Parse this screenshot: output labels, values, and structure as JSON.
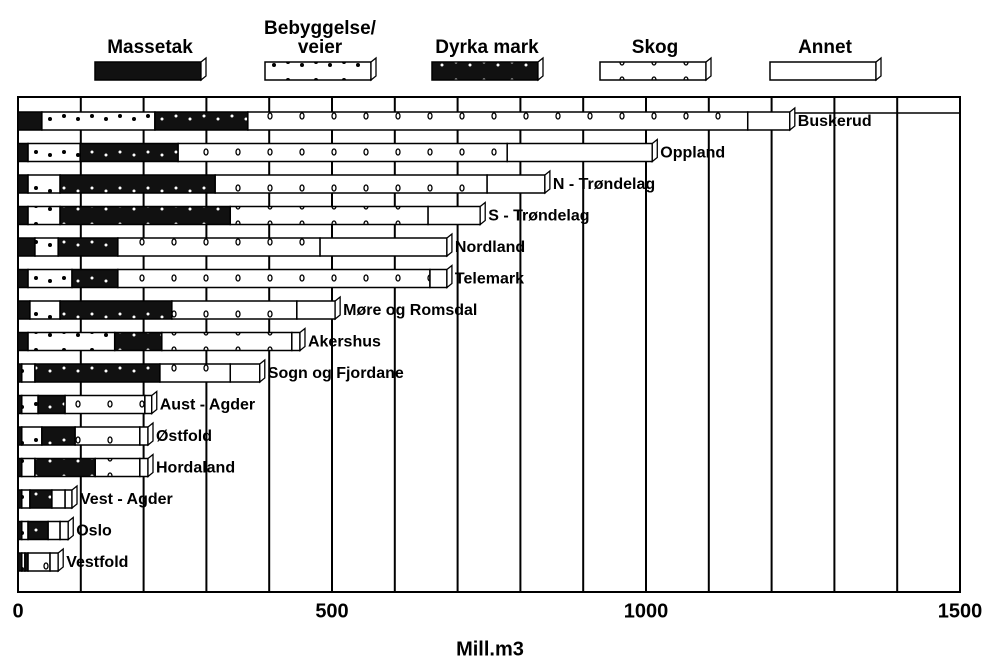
{
  "chart_data": {
    "type": "stacked_barh",
    "xlabel": "Mill.m3",
    "categories": [
      "Buskerud",
      "Oppland",
      "N - Trøndelag",
      "S - Trøndelag",
      "Nordland",
      "Telemark",
      "Møre og Romsdal",
      "Akershus",
      "Sogn og Fjordane",
      "Aust - Agder",
      "Østfold",
      "Hordaland",
      "Vest - Agder",
      "Oslo",
      "Vestfold"
    ],
    "series": [
      {
        "name": "Massetak",
        "color": "#111",
        "pattern": "solid",
        "values": [
          38,
          16,
          16,
          16,
          27,
          16,
          19,
          16,
          6,
          6,
          6,
          6,
          6,
          6,
          6
        ]
      },
      {
        "name": "Bebyggelse/\nveier",
        "color": "#fff",
        "pattern": "dots",
        "values": [
          180,
          83,
          51,
          51,
          37,
          70,
          48,
          138,
          21,
          26,
          32,
          21,
          13,
          10,
          5
        ]
      },
      {
        "name": "Dyrka mark",
        "color": "#111",
        "pattern": "whitedots",
        "values": [
          148,
          156,
          247,
          271,
          95,
          73,
          178,
          75,
          199,
          43,
          53,
          96,
          35,
          32,
          5
        ]
      },
      {
        "name": "Skog",
        "color": "#fff",
        "pattern": "circles",
        "values": [
          796,
          524,
          433,
          315,
          322,
          497,
          199,
          207,
          112,
          127,
          103,
          71,
          21,
          19,
          35
        ]
      },
      {
        "name": "Annet",
        "color": "#fff",
        "pattern": "solid",
        "values": [
          67,
          231,
          92,
          83,
          202,
          27,
          61,
          13,
          47,
          11,
          13,
          13,
          11,
          13,
          13
        ]
      }
    ],
    "xlim": [
      0,
      1500
    ],
    "xticks": [
      0,
      500,
      1000,
      1500
    ],
    "minor_xticks": [
      100,
      200,
      300,
      400,
      600,
      700,
      800,
      900,
      1100,
      1200,
      1300,
      1400
    ],
    "grid": true
  }
}
